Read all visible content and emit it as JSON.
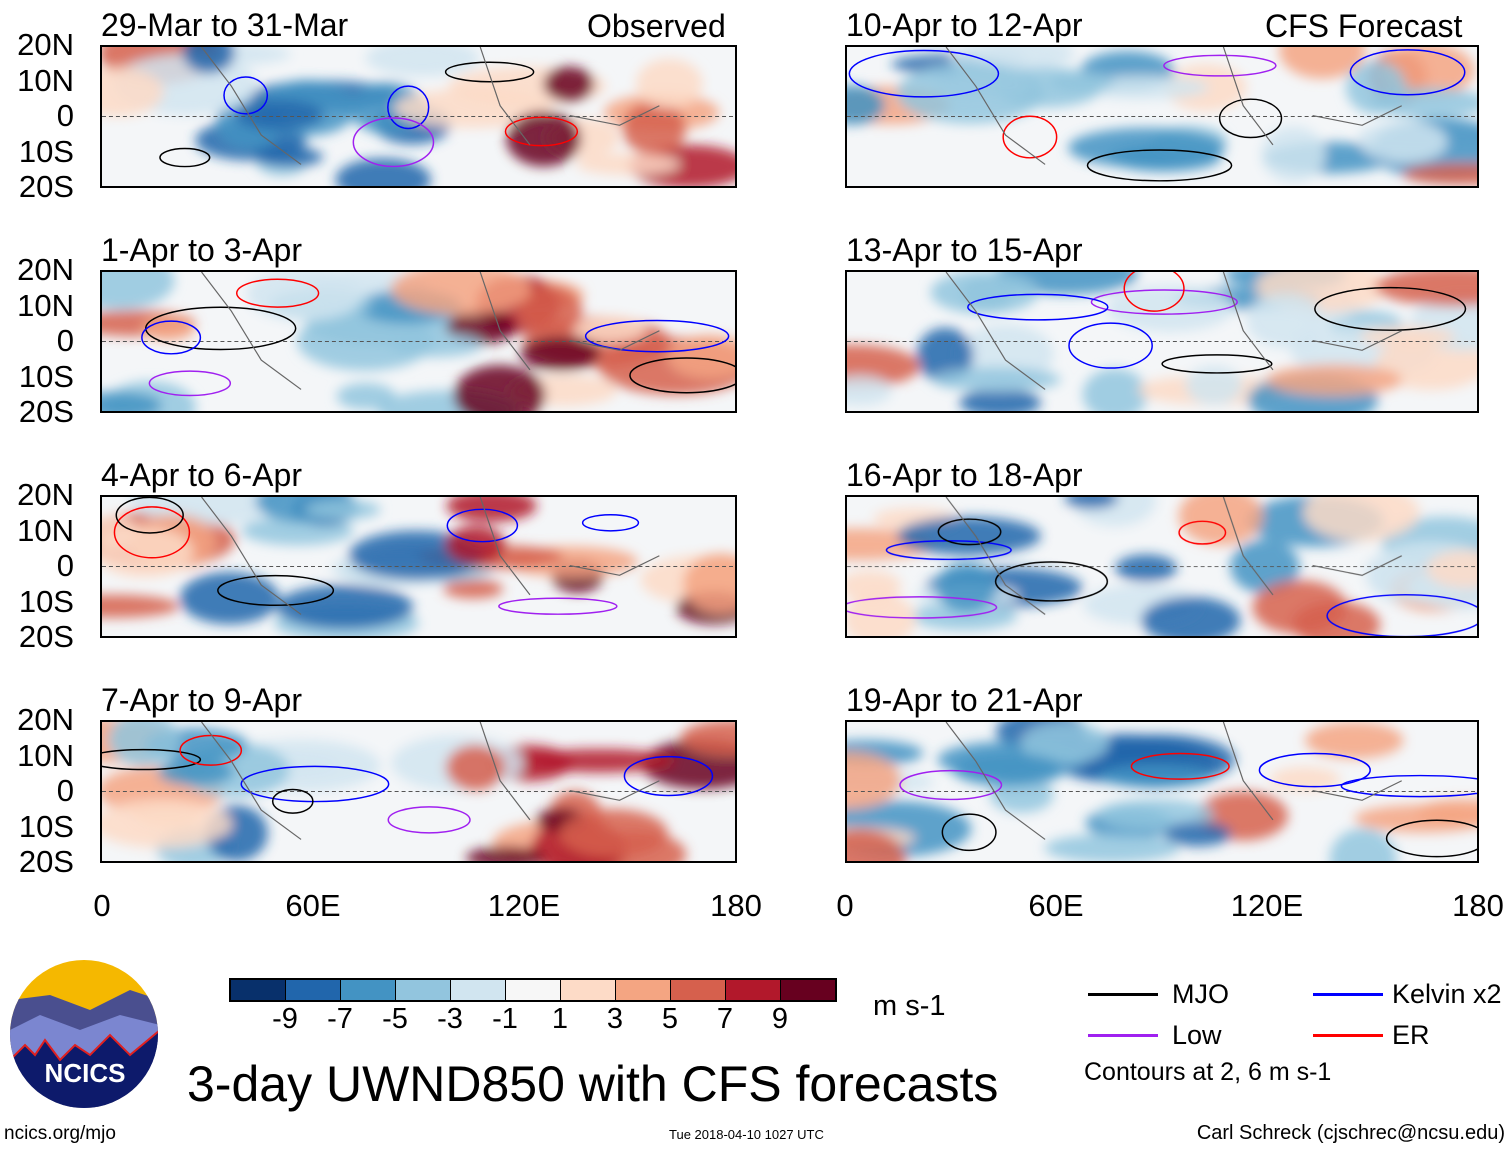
{
  "header": {
    "observed_label": "Observed",
    "forecast_label": "CFS Forecast"
  },
  "panels": [
    {
      "title": "29-Mar to 31-Mar",
      "column": "observed"
    },
    {
      "title": "1-Apr to 3-Apr",
      "column": "observed"
    },
    {
      "title": "4-Apr to 6-Apr",
      "column": "observed"
    },
    {
      "title": "7-Apr to 9-Apr",
      "column": "observed"
    },
    {
      "title": "10-Apr to 12-Apr",
      "column": "forecast"
    },
    {
      "title": "13-Apr to 15-Apr",
      "column": "forecast"
    },
    {
      "title": "16-Apr to 18-Apr",
      "column": "forecast"
    },
    {
      "title": "19-Apr to 21-Apr",
      "column": "forecast"
    }
  ],
  "lat_labels": [
    "20N",
    "10N",
    "0",
    "10S",
    "20S"
  ],
  "lon_labels": [
    "0",
    "60E",
    "120E",
    "180"
  ],
  "colorbar": {
    "colors": [
      "#08306b",
      "#2166ac",
      "#4393c3",
      "#92c5de",
      "#d1e5f0",
      "#f7f7f7",
      "#fddbc7",
      "#f4a582",
      "#d6604d",
      "#b2182b",
      "#67001f"
    ],
    "labels": [
      "-9",
      "-7",
      "-5",
      "-3",
      "-1",
      "1",
      "3",
      "5",
      "7",
      "9"
    ],
    "units": "m s-1"
  },
  "legend": {
    "items": [
      {
        "label": "MJO",
        "color": "#000000"
      },
      {
        "label": "Kelvin x2",
        "color": "#0000ff"
      },
      {
        "label": "Low",
        "color": "#a020f0"
      },
      {
        "label": "ER",
        "color": "#ff0000"
      }
    ],
    "contours_note": "Contours at 2, 6 m s-1"
  },
  "logo": {
    "text": "NCICS"
  },
  "main_title": "3-day UWND850 with CFS forecasts",
  "footer": {
    "url": "ncics.org/mjo",
    "timestamp": "Tue 2018-04-10 1027 UTC",
    "author": "Carl Schreck (cjschrec@ncsu.edu)"
  }
}
